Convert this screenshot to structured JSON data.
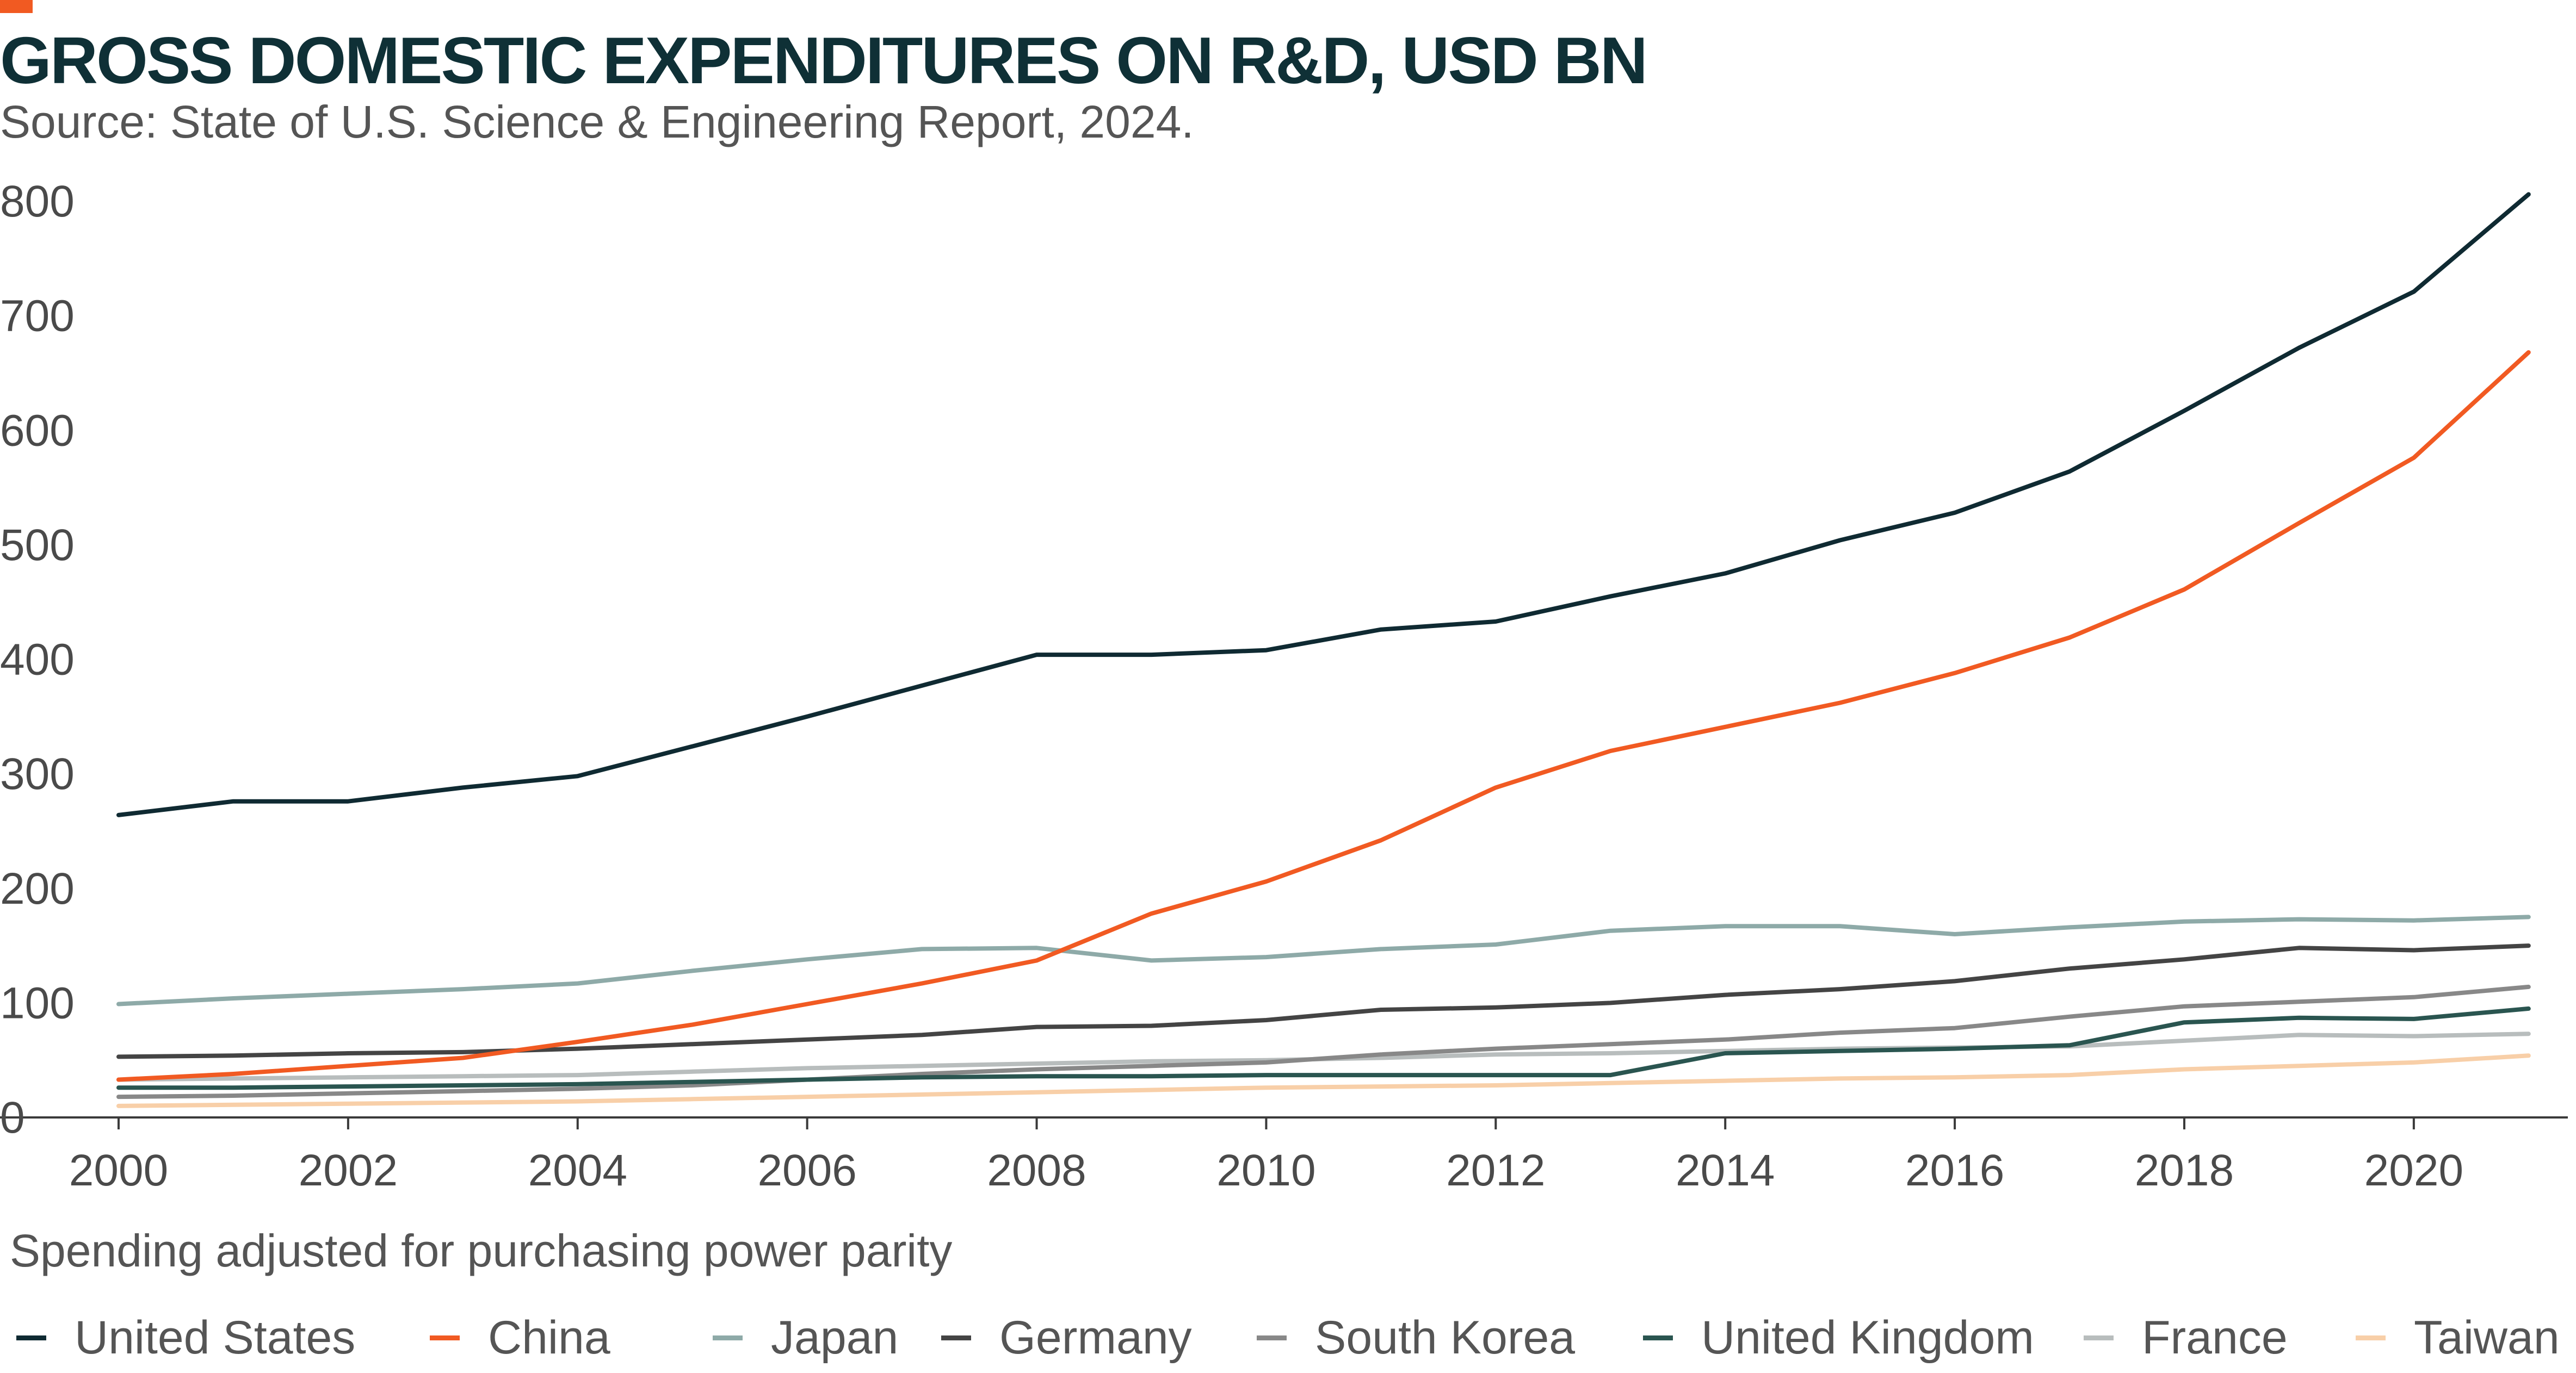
{
  "colors": {
    "accent": "#f15a22",
    "title": "#0f3036",
    "text": "#555555",
    "axis": "#3a3a3a"
  },
  "chart_data": {
    "type": "line",
    "title": "GROSS DOMESTIC EXPENDITURES ON R&D, USD BN",
    "subtitle": "Source: State of U.S. Science & Engineering Report, 2024.",
    "annotation": "Spending adjusted for purchasing power parity",
    "xlabel": "",
    "ylabel": "",
    "xlim": [
      2000,
      2021.2
    ],
    "ylim": [
      0,
      800
    ],
    "x_ticks": [
      2000,
      2002,
      2004,
      2006,
      2008,
      2010,
      2012,
      2014,
      2016,
      2018,
      2020
    ],
    "y_ticks": [
      0,
      100,
      200,
      300,
      400,
      500,
      600,
      700,
      800
    ],
    "grid": false,
    "legend_position": "bottom",
    "x": [
      2000,
      2001,
      2002,
      2003,
      2004,
      2005,
      2006,
      2007,
      2008,
      2009,
      2010,
      2011,
      2012,
      2013,
      2014,
      2015,
      2016,
      2017,
      2018,
      2019,
      2020,
      2021
    ],
    "series": [
      {
        "name": "United States",
        "color": "#0f2a32",
        "values": [
          264,
          276,
          276,
          288,
          298,
          324,
          350,
          377,
          404,
          404,
          408,
          426,
          433,
          455,
          475,
          504,
          528,
          564,
          617,
          672,
          721,
          806
        ]
      },
      {
        "name": "China",
        "color": "#f15a22",
        "values": [
          33,
          38,
          45,
          52,
          66,
          81,
          99,
          117,
          137,
          178,
          206,
          242,
          288,
          320,
          341,
          362,
          388,
          419,
          461,
          519,
          576,
          668
        ]
      },
      {
        "name": "Japan",
        "color": "#8eaaa8",
        "values": [
          99,
          104,
          108,
          112,
          117,
          128,
          138,
          147,
          148,
          137,
          140,
          147,
          151,
          163,
          167,
          167,
          160,
          166,
          171,
          173,
          172,
          175
        ]
      },
      {
        "name": "Germany",
        "color": "#444444",
        "values": [
          53,
          54,
          56,
          57,
          60,
          64,
          68,
          72,
          79,
          80,
          85,
          94,
          96,
          100,
          107,
          112,
          119,
          130,
          138,
          148,
          146,
          150
        ]
      },
      {
        "name": "South Korea",
        "color": "#888888",
        "values": [
          18,
          19,
          21,
          23,
          25,
          28,
          33,
          38,
          42,
          45,
          48,
          55,
          60,
          64,
          68,
          74,
          78,
          88,
          97,
          101,
          105,
          114
        ]
      },
      {
        "name": "United Kingdom",
        "color": "#2a5550",
        "values": [
          26,
          26,
          27,
          28,
          29,
          31,
          33,
          35,
          36,
          36,
          37,
          37,
          37,
          37,
          56,
          58,
          60,
          63,
          83,
          87,
          86,
          95
        ]
      },
      {
        "name": "France",
        "color": "#b8bdbd",
        "values": [
          33,
          34,
          35,
          36,
          37,
          40,
          43,
          45,
          47,
          49,
          50,
          52,
          55,
          56,
          58,
          60,
          61,
          62,
          67,
          72,
          71,
          73
        ]
      },
      {
        "name": "Taiwan",
        "color": "#f8cfa8",
        "values": [
          10,
          11,
          12,
          13,
          14,
          16,
          18,
          20,
          22,
          24,
          26,
          27,
          28,
          30,
          32,
          34,
          35,
          37,
          42,
          45,
          48,
          54
        ]
      }
    ]
  }
}
